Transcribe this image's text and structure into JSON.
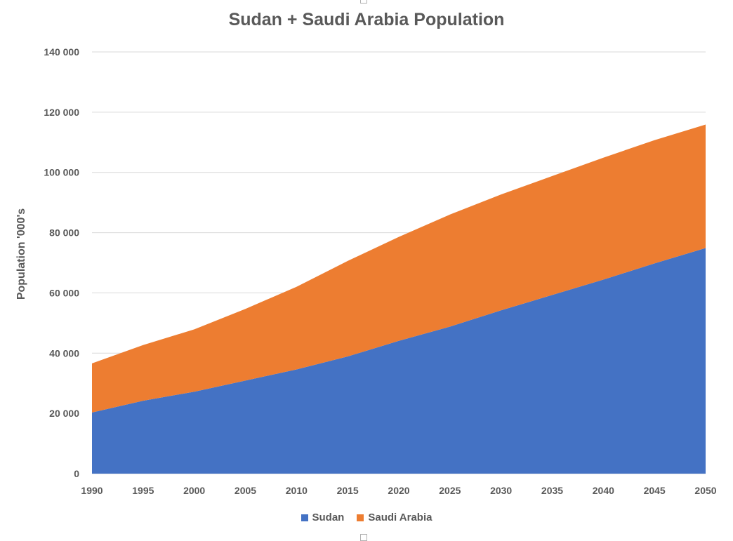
{
  "chart_data": {
    "type": "area",
    "stacked": true,
    "title": "Sudan + Saudi Arabia Population",
    "ylabel": "Population '000's",
    "xlabel": "",
    "x": [
      "1990",
      "1995",
      "2000",
      "2005",
      "2010",
      "2015",
      "2020",
      "2025",
      "2030",
      "2035",
      "2040",
      "2045",
      "2050"
    ],
    "ylim": [
      0,
      140000
    ],
    "yticks": [
      0,
      20000,
      40000,
      60000,
      80000,
      100000,
      120000,
      140000
    ],
    "ytick_labels": [
      "0",
      "20 000",
      "40 000",
      "60 000",
      "80 000",
      "100 000",
      "120 000",
      "140 000"
    ],
    "grid": true,
    "legend_position": "bottom",
    "series": [
      {
        "name": "Sudan",
        "color": "#4472C4",
        "values": [
          20300,
          24200,
          27200,
          30900,
          34600,
          38900,
          44100,
          48800,
          54200,
          59300,
          64400,
          69800,
          74900
        ]
      },
      {
        "name": "Saudi Arabia",
        "color": "#ED7D31",
        "values": [
          16300,
          18500,
          20700,
          23800,
          27400,
          31700,
          34500,
          37200,
          38500,
          39500,
          40500,
          40900,
          41000
        ]
      }
    ]
  }
}
